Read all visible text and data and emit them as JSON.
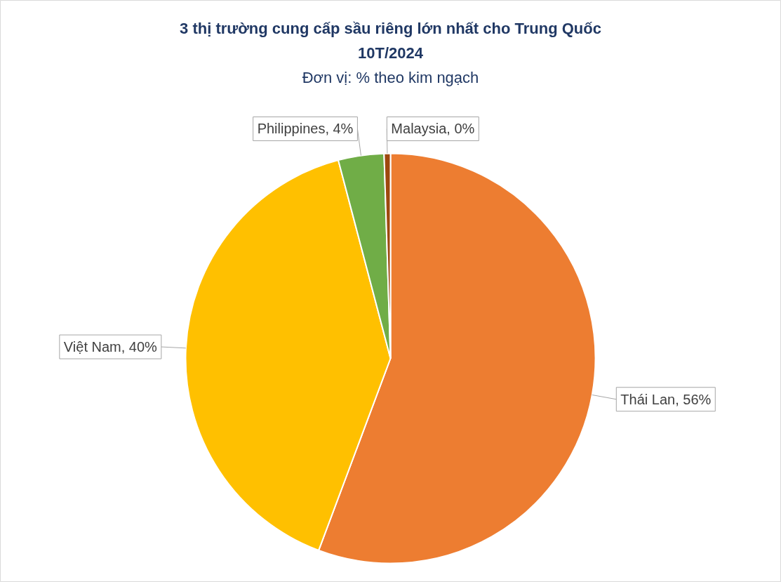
{
  "chart_data": {
    "type": "pie",
    "title": "3 thị trường cung cấp sầu riêng lớn nhất cho Trung Quốc\n10T/2024",
    "subtitle": "Đơn vị: % theo kim ngạch",
    "categories": [
      "Thái Lan",
      "Việt Nam",
      "Philippines",
      "Malaysia"
    ],
    "values": [
      55.7,
      40.2,
      3.6,
      0.5
    ],
    "value_labels": [
      "56%",
      "40%",
      "4%",
      "0%"
    ],
    "colors": [
      "#ed7d31",
      "#ffc000",
      "#70ad47",
      "#9e480e"
    ]
  }
}
